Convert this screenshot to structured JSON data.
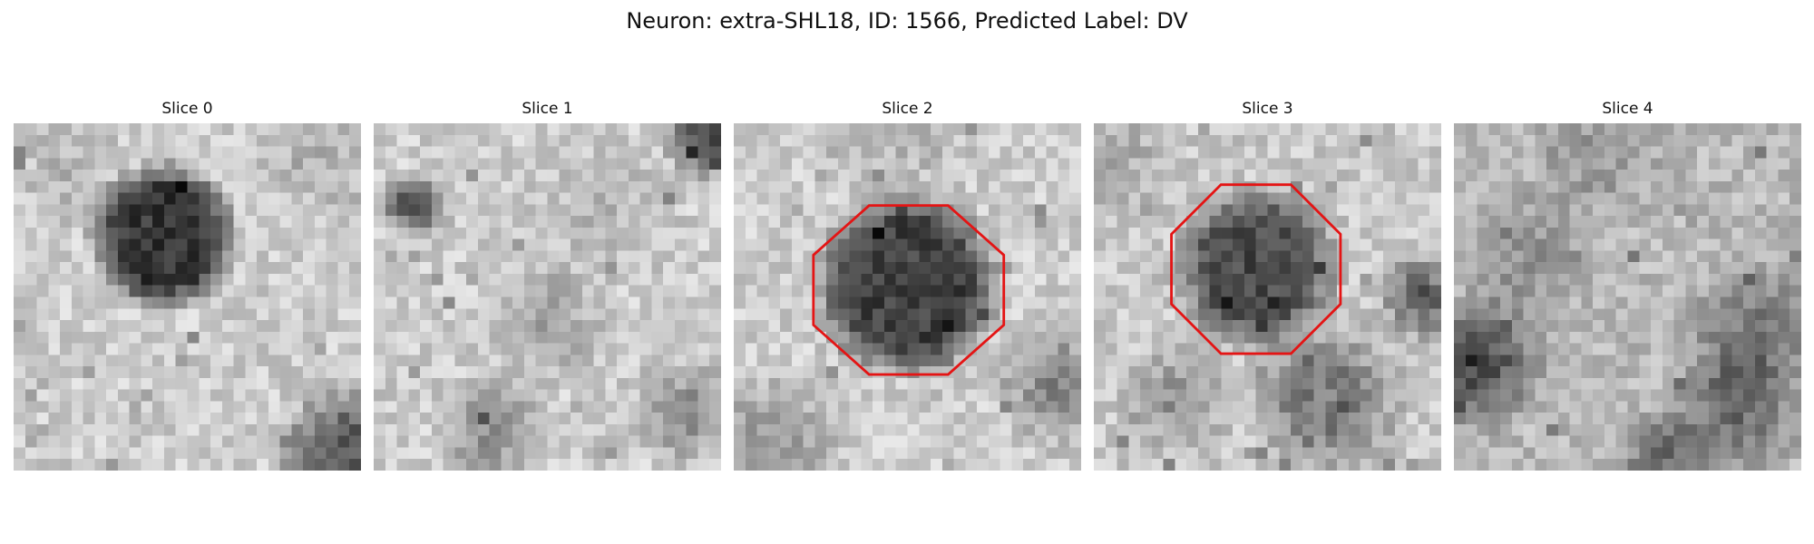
{
  "figure": {
    "title": "Neuron: extra-SHL18, ID: 1566, Predicted Label: DV"
  },
  "outline_color": "#e41414",
  "panels": [
    {
      "title": "Slice 0",
      "has_outline": false
    },
    {
      "title": "Slice 1",
      "has_outline": false
    },
    {
      "title": "Slice 2",
      "has_outline": true
    },
    {
      "title": "Slice 3",
      "has_outline": true
    },
    {
      "title": "Slice 4",
      "has_outline": false
    }
  ]
}
